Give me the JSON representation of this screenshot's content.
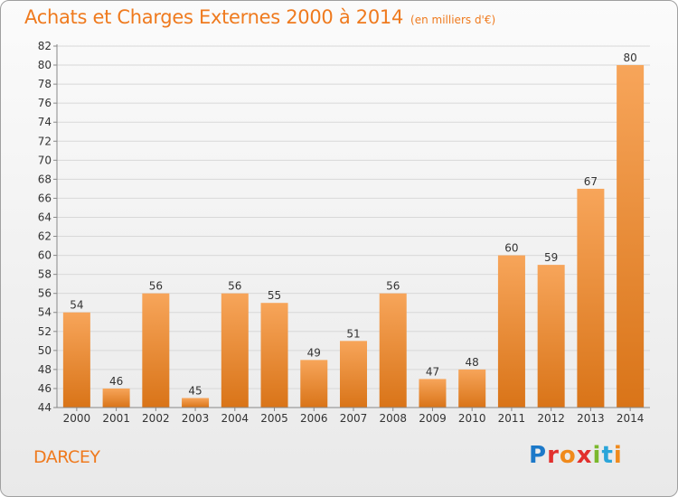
{
  "header": {
    "title": "Achats et Charges Externes 2000 à 2014",
    "subtitle": "(en milliers d'€)"
  },
  "footer": {
    "place": "DARCEY",
    "logo_text": "Proxiti"
  },
  "colors": {
    "accent": "#ef7a1e",
    "bar_top": "#f7a55a",
    "bar_bottom": "#d97418",
    "grid": "#d8d8d8",
    "axis": "#888888"
  },
  "chart_data": {
    "type": "bar",
    "categories": [
      "2000",
      "2001",
      "2002",
      "2003",
      "2004",
      "2005",
      "2006",
      "2007",
      "2008",
      "2009",
      "2010",
      "2011",
      "2012",
      "2013",
      "2014"
    ],
    "values": [
      54,
      46,
      56,
      45,
      56,
      55,
      49,
      51,
      56,
      47,
      48,
      60,
      59,
      67,
      80
    ],
    "ylim": [
      44,
      82
    ],
    "yticks": [
      44,
      46,
      48,
      50,
      52,
      54,
      56,
      58,
      60,
      62,
      64,
      66,
      68,
      70,
      72,
      74,
      76,
      78,
      80,
      82
    ],
    "grid": true,
    "data_labels": true
  }
}
